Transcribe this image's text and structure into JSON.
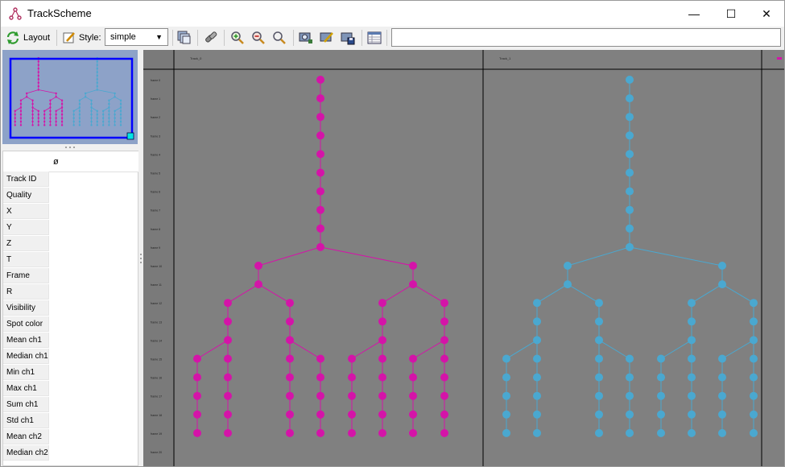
{
  "window": {
    "title": "TrackScheme",
    "minimize_glyph": "—",
    "maximize_glyph": "☐",
    "close_glyph": "✕"
  },
  "toolbar": {
    "layout_label": "Layout",
    "style_label": "Style:",
    "style_value": "simple",
    "search_value": ""
  },
  "properties": {
    "column_header": "ø",
    "rows": [
      "Track ID",
      "Quality",
      "X",
      "Y",
      "Z",
      "T",
      "Frame",
      "R",
      "Visibility",
      "Spot color",
      "Mean ch1",
      "Median ch1",
      "Min ch1",
      "Max ch1",
      "Sum ch1",
      "Std ch1",
      "Mean ch2",
      "Median ch2"
    ]
  },
  "trackscheme": {
    "columns": [
      {
        "name": "Track_0",
        "color": "#d414a8"
      },
      {
        "name": "Track_1",
        "color": "#4aa8d0"
      }
    ],
    "frame_labels": [
      "frame 0",
      "frame 1",
      "frame 2",
      "frame 3",
      "frame 4",
      "frame 5",
      "frame 6",
      "frame 7",
      "frame 8",
      "frame 9",
      "frame 10",
      "frame 11",
      "frame 12",
      "frame 13",
      "frame 14",
      "frame 15",
      "frame 16",
      "frame 17",
      "frame 18",
      "frame 19",
      "frame 20"
    ]
  },
  "colors": {
    "track0": "#d414a8",
    "track1": "#4aa8d0",
    "canvas_bg": "#808080",
    "overview_bg": "#8da2c8",
    "viewport_border": "#0000ff",
    "viewport_handle": "#00e5e5"
  }
}
